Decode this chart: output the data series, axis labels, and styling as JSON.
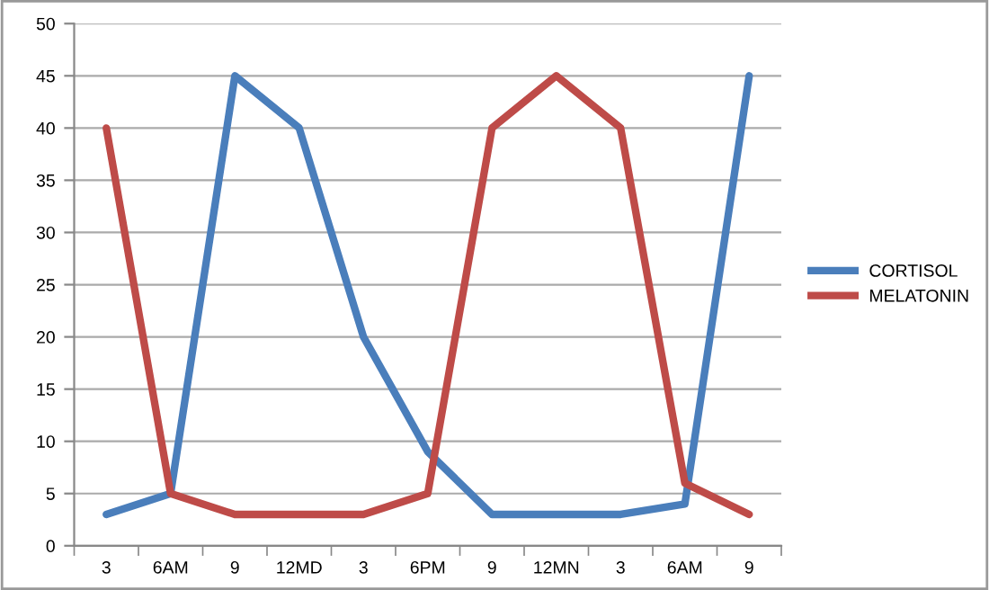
{
  "chart_data": {
    "type": "line",
    "categories": [
      "3",
      "6AM",
      "9",
      "12MD",
      "3",
      "6PM",
      "9",
      "12MN",
      "3",
      "6AM",
      "9"
    ],
    "series": [
      {
        "name": "CORTISOL",
        "color": "#4a7ebb",
        "values": [
          3,
          5,
          45,
          40,
          20,
          9,
          3,
          3,
          3,
          4,
          45
        ]
      },
      {
        "name": "MELATONIN",
        "color": "#be4b48",
        "values": [
          40,
          5,
          3,
          3,
          3,
          5,
          40,
          45,
          40,
          6,
          3
        ]
      }
    ],
    "ylim": [
      0,
      50
    ],
    "yticks": [
      0,
      5,
      10,
      15,
      20,
      25,
      30,
      35,
      40,
      45,
      50
    ],
    "grid": "y",
    "legend": "right",
    "marker": "none",
    "line_style": "solid"
  }
}
